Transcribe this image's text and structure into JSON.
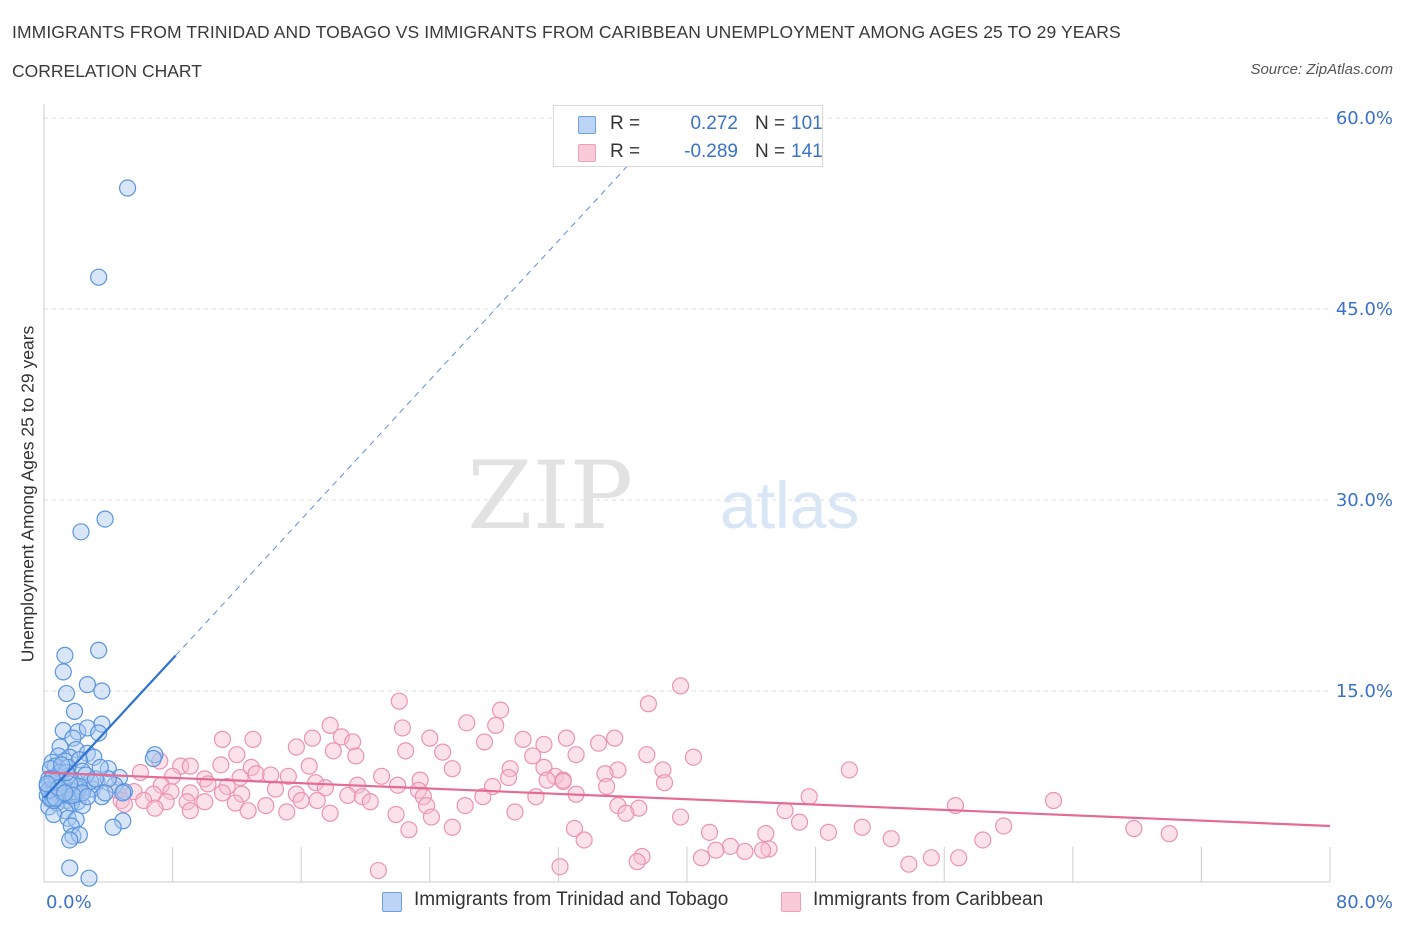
{
  "header": {
    "title": "IMMIGRANTS FROM TRINIDAD AND TOBAGO VS IMMIGRANTS FROM CARIBBEAN UNEMPLOYMENT AMONG AGES 25 TO 29 YEARS",
    "subtitle": "CORRELATION CHART",
    "source": "Source: ZipAtlas.com"
  },
  "watermark": {
    "zip": "ZIP",
    "atlas": "atlas"
  },
  "colors": {
    "blue_fill": "#a9c8ef",
    "blue_stroke": "#5b95dd",
    "blue_line": "#2e72d2",
    "pink_fill": "#f7bfd0",
    "pink_stroke": "#ec93b0",
    "pink_line": "#e46b96",
    "tick_text": "#3a72c8",
    "grid": "#dddddd"
  },
  "legend_top": {
    "rows": [
      {
        "r_label": "R =",
        "r_value": "0.272",
        "n_label": "N =",
        "n_value": "101"
      },
      {
        "r_label": "R =",
        "r_value": "-0.289",
        "n_label": "N =",
        "n_value": "141"
      }
    ]
  },
  "legend_bottom": {
    "items": [
      {
        "label": "Immigrants from Trinidad and Tobago"
      },
      {
        "label": "Immigrants from Caribbean"
      }
    ]
  },
  "chart_data": {
    "type": "scatter",
    "title": "IMMIGRANTS FROM TRINIDAD AND TOBAGO VS IMMIGRANTS FROM CARIBBEAN UNEMPLOYMENT AMONG AGES 25 TO 29 YEARS",
    "subtitle": "CORRELATION CHART",
    "ylabel": "Unemployment Among Ages 25 to 29 years",
    "xlabel": "",
    "xlim": [
      0,
      80
    ],
    "ylim": [
      0,
      60
    ],
    "x_tick_labels": [
      "0.0%",
      "80.0%"
    ],
    "y_ticks": [
      15,
      30,
      45,
      60
    ],
    "y_tick_labels": [
      "15.0%",
      "30.0%",
      "45.0%",
      "60.0%"
    ],
    "grid": true,
    "legend_position": "bottom",
    "series": [
      {
        "name": "Immigrants from Trinidad and Tobago",
        "r": 0.272,
        "n": 101,
        "trend": {
          "x0": 0,
          "y0": 6.6,
          "x1": 8.2,
          "y1": 17.8,
          "dashed_to_x": 37.0,
          "dashed_to_y": 57.2
        },
        "points": [
          [
            5.2,
            54.5
          ],
          [
            3.4,
            47.5
          ],
          [
            3.8,
            28.5
          ],
          [
            2.3,
            27.5
          ],
          [
            3.4,
            18.2
          ],
          [
            1.3,
            17.8
          ],
          [
            1.2,
            16.5
          ],
          [
            2.7,
            15.5
          ],
          [
            3.6,
            15.0
          ],
          [
            1.4,
            14.8
          ],
          [
            1.9,
            13.4
          ],
          [
            3.6,
            12.4
          ],
          [
            1.2,
            11.9
          ],
          [
            2.1,
            11.8
          ],
          [
            2.7,
            12.1
          ],
          [
            1.8,
            11.3
          ],
          [
            3.4,
            11.7
          ],
          [
            1.0,
            10.6
          ],
          [
            2.0,
            10.4
          ],
          [
            2.7,
            10.1
          ],
          [
            0.9,
            9.9
          ],
          [
            1.6,
            9.8
          ],
          [
            3.1,
            9.8
          ],
          [
            0.5,
            9.4
          ],
          [
            1.3,
            9.5
          ],
          [
            2.2,
            9.6
          ],
          [
            0.7,
            9.1
          ],
          [
            1.5,
            9.0
          ],
          [
            0.4,
            8.9
          ],
          [
            1.0,
            8.6
          ],
          [
            2.4,
            8.7
          ],
          [
            4.0,
            8.9
          ],
          [
            6.9,
            10.0
          ],
          [
            4.7,
            8.2
          ],
          [
            0.3,
            8.1
          ],
          [
            1.9,
            8.0
          ],
          [
            3.3,
            7.9
          ],
          [
            4.4,
            7.6
          ],
          [
            0.5,
            7.8
          ],
          [
            1.2,
            7.6
          ],
          [
            2.5,
            7.4
          ],
          [
            0.2,
            7.5
          ],
          [
            1.7,
            7.2
          ],
          [
            3.0,
            7.3
          ],
          [
            5.0,
            7.1
          ],
          [
            0.6,
            7.0
          ],
          [
            1.4,
            7.0
          ],
          [
            2.3,
            6.9
          ],
          [
            0.2,
            6.8
          ],
          [
            1.0,
            6.8
          ],
          [
            1.8,
            6.6
          ],
          [
            3.6,
            6.7
          ],
          [
            0.4,
            6.5
          ],
          [
            1.4,
            6.4
          ],
          [
            2.1,
            6.3
          ],
          [
            0.8,
            6.2
          ],
          [
            1.7,
            6.2
          ],
          [
            0.3,
            5.9
          ],
          [
            2.4,
            6.0
          ],
          [
            1.3,
            5.6
          ],
          [
            0.6,
            5.3
          ],
          [
            1.5,
            5.0
          ],
          [
            2.0,
            4.9
          ],
          [
            4.9,
            4.8
          ],
          [
            1.7,
            4.4
          ],
          [
            4.3,
            4.3
          ],
          [
            1.8,
            3.6
          ],
          [
            2.2,
            3.7
          ],
          [
            1.6,
            3.3
          ],
          [
            1.6,
            1.1
          ],
          [
            2.8,
            0.3
          ],
          [
            4.0,
            8.1
          ],
          [
            4.9,
            7.0
          ],
          [
            6.8,
            9.7
          ],
          [
            2.0,
            6.9
          ],
          [
            0.9,
            7.2
          ],
          [
            1.1,
            7.8
          ],
          [
            2.9,
            7.9
          ],
          [
            0.6,
            6.4
          ],
          [
            1.5,
            8.3
          ],
          [
            3.8,
            7.0
          ],
          [
            0.4,
            6.6
          ],
          [
            2.6,
            8.4
          ],
          [
            1.9,
            7.1
          ],
          [
            0.8,
            8.0
          ],
          [
            1.2,
            6.9
          ],
          [
            2.2,
            7.5
          ],
          [
            0.3,
            7.2
          ],
          [
            1.6,
            7.7
          ],
          [
            3.2,
            8.1
          ],
          [
            0.7,
            6.6
          ],
          [
            1.4,
            8.6
          ],
          [
            2.4,
            7.0
          ],
          [
            0.5,
            8.1
          ],
          [
            1.8,
            6.8
          ],
          [
            0.9,
            7.4
          ],
          [
            2.7,
            6.7
          ],
          [
            1.1,
            9.2
          ],
          [
            3.5,
            9.0
          ],
          [
            0.2,
            7.7
          ],
          [
            1.3,
            7.0
          ]
        ]
      },
      {
        "name": "Immigrants from Caribbean",
        "r": -0.289,
        "n": 141,
        "trend": {
          "x0": 0,
          "y0": 8.6,
          "x1": 80,
          "y1": 4.4
        },
        "points": [
          [
            39.6,
            15.4
          ],
          [
            22.1,
            14.2
          ],
          [
            28.4,
            13.5
          ],
          [
            37.6,
            14.0
          ],
          [
            17.8,
            12.3
          ],
          [
            26.3,
            12.5
          ],
          [
            28.1,
            12.3
          ],
          [
            22.3,
            12.1
          ],
          [
            11.1,
            11.2
          ],
          [
            13.0,
            11.2
          ],
          [
            18.5,
            11.4
          ],
          [
            19.2,
            11.0
          ],
          [
            16.7,
            11.3
          ],
          [
            24.0,
            11.3
          ],
          [
            27.4,
            11.0
          ],
          [
            29.8,
            11.2
          ],
          [
            32.5,
            11.3
          ],
          [
            34.5,
            10.9
          ],
          [
            35.5,
            11.3
          ],
          [
            31.1,
            10.8
          ],
          [
            15.7,
            10.6
          ],
          [
            18.0,
            10.3
          ],
          [
            22.5,
            10.3
          ],
          [
            24.8,
            10.2
          ],
          [
            12.0,
            10.0
          ],
          [
            19.4,
            9.9
          ],
          [
            30.4,
            9.9
          ],
          [
            33.1,
            10.0
          ],
          [
            37.5,
            10.0
          ],
          [
            40.4,
            9.8
          ],
          [
            7.2,
            9.5
          ],
          [
            8.5,
            9.1
          ],
          [
            9.1,
            9.1
          ],
          [
            11.0,
            9.2
          ],
          [
            12.9,
            9.0
          ],
          [
            16.5,
            9.1
          ],
          [
            25.4,
            8.9
          ],
          [
            29.0,
            8.9
          ],
          [
            31.1,
            9.0
          ],
          [
            35.7,
            8.8
          ],
          [
            38.5,
            8.8
          ],
          [
            50.1,
            8.8
          ],
          [
            6.0,
            8.6
          ],
          [
            8.0,
            8.3
          ],
          [
            10.0,
            8.1
          ],
          [
            12.2,
            8.2
          ],
          [
            13.2,
            8.5
          ],
          [
            14.1,
            8.4
          ],
          [
            15.2,
            8.3
          ],
          [
            21.0,
            8.3
          ],
          [
            23.4,
            8.0
          ],
          [
            28.9,
            8.2
          ],
          [
            31.8,
            8.3
          ],
          [
            32.3,
            8.0
          ],
          [
            34.9,
            8.5
          ],
          [
            35.0,
            7.5
          ],
          [
            7.3,
            7.6
          ],
          [
            10.2,
            7.7
          ],
          [
            11.4,
            7.5
          ],
          [
            16.9,
            7.8
          ],
          [
            17.5,
            7.4
          ],
          [
            19.5,
            7.6
          ],
          [
            22.0,
            7.6
          ],
          [
            23.3,
            7.2
          ],
          [
            27.9,
            7.5
          ],
          [
            32.3,
            7.9
          ],
          [
            38.6,
            7.8
          ],
          [
            4.5,
            7.2
          ],
          [
            5.6,
            7.1
          ],
          [
            6.8,
            6.9
          ],
          [
            7.9,
            7.1
          ],
          [
            9.1,
            7.0
          ],
          [
            11.1,
            7.0
          ],
          [
            12.3,
            6.9
          ],
          [
            14.4,
            7.3
          ],
          [
            15.7,
            6.9
          ],
          [
            18.9,
            6.8
          ],
          [
            19.8,
            6.7
          ],
          [
            23.6,
            6.7
          ],
          [
            27.3,
            6.7
          ],
          [
            30.6,
            6.7
          ],
          [
            33.1,
            6.9
          ],
          [
            47.6,
            6.7
          ],
          [
            62.8,
            6.4
          ],
          [
            4.8,
            6.4
          ],
          [
            6.2,
            6.4
          ],
          [
            7.6,
            6.3
          ],
          [
            8.9,
            6.3
          ],
          [
            10.0,
            6.3
          ],
          [
            11.9,
            6.2
          ],
          [
            13.8,
            6.0
          ],
          [
            16.0,
            6.4
          ],
          [
            17.0,
            6.4
          ],
          [
            20.3,
            6.3
          ],
          [
            23.8,
            6.0
          ],
          [
            26.2,
            6.0
          ],
          [
            35.7,
            6.0
          ],
          [
            37.0,
            5.8
          ],
          [
            46.1,
            5.6
          ],
          [
            56.7,
            6.0
          ],
          [
            5.0,
            6.1
          ],
          [
            6.9,
            5.8
          ],
          [
            9.1,
            5.6
          ],
          [
            12.7,
            5.6
          ],
          [
            15.1,
            5.5
          ],
          [
            17.8,
            5.4
          ],
          [
            21.9,
            5.3
          ],
          [
            24.1,
            5.1
          ],
          [
            29.3,
            5.5
          ],
          [
            36.2,
            5.4
          ],
          [
            39.6,
            5.1
          ],
          [
            47.0,
            4.7
          ],
          [
            50.9,
            4.3
          ],
          [
            59.7,
            4.4
          ],
          [
            67.8,
            4.2
          ],
          [
            70.0,
            3.8
          ],
          [
            22.7,
            4.1
          ],
          [
            25.4,
            4.3
          ],
          [
            33.0,
            4.2
          ],
          [
            41.4,
            3.9
          ],
          [
            44.9,
            3.8
          ],
          [
            48.8,
            3.9
          ],
          [
            52.7,
            3.4
          ],
          [
            58.4,
            3.3
          ],
          [
            33.6,
            3.3
          ],
          [
            42.7,
            2.8
          ],
          [
            45.1,
            2.6
          ],
          [
            41.8,
            2.5
          ],
          [
            43.6,
            2.4
          ],
          [
            37.2,
            2.0
          ],
          [
            40.9,
            1.9
          ],
          [
            55.2,
            1.9
          ],
          [
            53.8,
            1.4
          ],
          [
            36.9,
            1.6
          ],
          [
            32.1,
            1.2
          ],
          [
            20.8,
            0.9
          ],
          [
            56.9,
            1.9
          ],
          [
            44.7,
            2.5
          ],
          [
            31.3,
            8.0
          ]
        ]
      }
    ]
  }
}
